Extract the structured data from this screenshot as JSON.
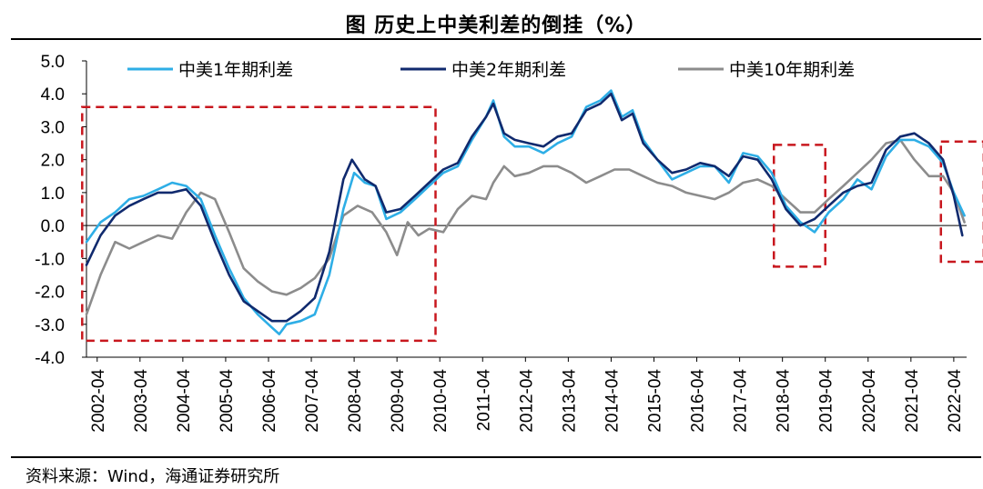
{
  "title": "图  历史上中美利差的倒挂（%）",
  "source": "资料来源：Wind，海通证券研究所",
  "chart_data": {
    "type": "line",
    "title": "图  历史上中美利差的倒挂（%）",
    "ylim": [
      -4.0,
      5.0
    ],
    "y_ticks": [
      "5.0",
      "4.0",
      "3.0",
      "2.0",
      "1.0",
      "0.0",
      "-1.0",
      "-2.0",
      "-3.0",
      "-4.0"
    ],
    "y_tick_values": [
      5,
      4,
      3,
      2,
      1,
      0,
      -1,
      -2,
      -3,
      -4
    ],
    "x_ticks": [
      "2002-04",
      "2003-04",
      "2004-04",
      "2005-04",
      "2006-04",
      "2007-04",
      "2008-04",
      "2009-04",
      "2010-04",
      "2011-04",
      "2012-04",
      "2013-04",
      "2014-04",
      "2015-04",
      "2016-04",
      "2017-04",
      "2018-04",
      "2019-04",
      "2020-04",
      "2021-04",
      "2022-04"
    ],
    "x_range": [
      2002.0,
      2022.55
    ],
    "legend_position": "top",
    "series": [
      {
        "name": "中美1年期利差",
        "color": "#2eaee6",
        "points": [
          [
            2002.0,
            -0.5
          ],
          [
            2002.33,
            0.1
          ],
          [
            2002.67,
            0.4
          ],
          [
            2003.0,
            0.8
          ],
          [
            2003.33,
            0.9
          ],
          [
            2003.67,
            1.1
          ],
          [
            2004.0,
            1.3
          ],
          [
            2004.33,
            1.2
          ],
          [
            2004.67,
            0.8
          ],
          [
            2005.0,
            -0.3
          ],
          [
            2005.33,
            -1.3
          ],
          [
            2005.67,
            -2.2
          ],
          [
            2006.0,
            -2.7
          ],
          [
            2006.33,
            -3.1
          ],
          [
            2006.5,
            -3.3
          ],
          [
            2006.67,
            -3.0
          ],
          [
            2007.0,
            -2.9
          ],
          [
            2007.33,
            -2.7
          ],
          [
            2007.67,
            -1.5
          ],
          [
            2008.0,
            0.5
          ],
          [
            2008.25,
            1.6
          ],
          [
            2008.5,
            1.3
          ],
          [
            2008.75,
            1.2
          ],
          [
            2009.0,
            0.2
          ],
          [
            2009.33,
            0.4
          ],
          [
            2009.67,
            0.8
          ],
          [
            2010.0,
            1.2
          ],
          [
            2010.33,
            1.6
          ],
          [
            2010.67,
            1.8
          ],
          [
            2011.0,
            2.6
          ],
          [
            2011.33,
            3.3
          ],
          [
            2011.5,
            3.8
          ],
          [
            2011.75,
            2.7
          ],
          [
            2012.0,
            2.4
          ],
          [
            2012.33,
            2.4
          ],
          [
            2012.67,
            2.2
          ],
          [
            2013.0,
            2.5
          ],
          [
            2013.33,
            2.7
          ],
          [
            2013.67,
            3.6
          ],
          [
            2014.0,
            3.8
          ],
          [
            2014.25,
            4.1
          ],
          [
            2014.5,
            3.3
          ],
          [
            2014.75,
            3.5
          ],
          [
            2015.0,
            2.6
          ],
          [
            2015.33,
            2.0
          ],
          [
            2015.67,
            1.4
          ],
          [
            2016.0,
            1.6
          ],
          [
            2016.33,
            1.8
          ],
          [
            2016.67,
            1.8
          ],
          [
            2017.0,
            1.3
          ],
          [
            2017.33,
            2.2
          ],
          [
            2017.67,
            2.1
          ],
          [
            2018.0,
            1.6
          ],
          [
            2018.33,
            0.6
          ],
          [
            2018.67,
            0.1
          ],
          [
            2019.0,
            -0.2
          ],
          [
            2019.33,
            0.4
          ],
          [
            2019.67,
            0.8
          ],
          [
            2020.0,
            1.4
          ],
          [
            2020.33,
            1.1
          ],
          [
            2020.67,
            2.1
          ],
          [
            2021.0,
            2.6
          ],
          [
            2021.33,
            2.6
          ],
          [
            2021.67,
            2.4
          ],
          [
            2022.0,
            1.9
          ],
          [
            2022.25,
            1.0
          ],
          [
            2022.5,
            0.3
          ]
        ]
      },
      {
        "name": "中美2年期利差",
        "color": "#102a6e",
        "points": [
          [
            2002.0,
            -1.2
          ],
          [
            2002.33,
            -0.3
          ],
          [
            2002.67,
            0.3
          ],
          [
            2003.0,
            0.6
          ],
          [
            2003.33,
            0.8
          ],
          [
            2003.67,
            1.0
          ],
          [
            2004.0,
            1.0
          ],
          [
            2004.33,
            1.1
          ],
          [
            2004.67,
            0.6
          ],
          [
            2005.0,
            -0.5
          ],
          [
            2005.33,
            -1.5
          ],
          [
            2005.67,
            -2.3
          ],
          [
            2006.0,
            -2.6
          ],
          [
            2006.33,
            -2.9
          ],
          [
            2006.67,
            -2.9
          ],
          [
            2007.0,
            -2.6
          ],
          [
            2007.33,
            -2.2
          ],
          [
            2007.67,
            -0.8
          ],
          [
            2008.0,
            1.4
          ],
          [
            2008.2,
            2.0
          ],
          [
            2008.5,
            1.4
          ],
          [
            2008.75,
            1.2
          ],
          [
            2009.0,
            0.4
          ],
          [
            2009.33,
            0.5
          ],
          [
            2009.67,
            0.9
          ],
          [
            2010.0,
            1.3
          ],
          [
            2010.33,
            1.7
          ],
          [
            2010.67,
            1.9
          ],
          [
            2011.0,
            2.7
          ],
          [
            2011.33,
            3.3
          ],
          [
            2011.5,
            3.7
          ],
          [
            2011.75,
            2.8
          ],
          [
            2012.0,
            2.6
          ],
          [
            2012.33,
            2.5
          ],
          [
            2012.67,
            2.4
          ],
          [
            2013.0,
            2.7
          ],
          [
            2013.33,
            2.8
          ],
          [
            2013.67,
            3.5
          ],
          [
            2014.0,
            3.7
          ],
          [
            2014.25,
            4.0
          ],
          [
            2014.5,
            3.2
          ],
          [
            2014.75,
            3.4
          ],
          [
            2015.0,
            2.5
          ],
          [
            2015.33,
            2.0
          ],
          [
            2015.67,
            1.6
          ],
          [
            2016.0,
            1.7
          ],
          [
            2016.33,
            1.9
          ],
          [
            2016.67,
            1.8
          ],
          [
            2017.0,
            1.5
          ],
          [
            2017.33,
            2.1
          ],
          [
            2017.67,
            2.0
          ],
          [
            2018.0,
            1.4
          ],
          [
            2018.33,
            0.5
          ],
          [
            2018.67,
            0.0
          ],
          [
            2019.0,
            0.2
          ],
          [
            2019.33,
            0.6
          ],
          [
            2019.67,
            1.0
          ],
          [
            2020.0,
            1.2
          ],
          [
            2020.33,
            1.3
          ],
          [
            2020.67,
            2.3
          ],
          [
            2021.0,
            2.7
          ],
          [
            2021.33,
            2.8
          ],
          [
            2021.67,
            2.5
          ],
          [
            2022.0,
            2.0
          ],
          [
            2022.25,
            0.9
          ],
          [
            2022.45,
            -0.3
          ]
        ]
      },
      {
        "name": "中美10年期利差",
        "color": "#8c8c8c",
        "points": [
          [
            2002.0,
            -2.7
          ],
          [
            2002.33,
            -1.5
          ],
          [
            2002.67,
            -0.5
          ],
          [
            2003.0,
            -0.7
          ],
          [
            2003.33,
            -0.5
          ],
          [
            2003.67,
            -0.3
          ],
          [
            2004.0,
            -0.4
          ],
          [
            2004.33,
            0.4
          ],
          [
            2004.67,
            1.0
          ],
          [
            2005.0,
            0.8
          ],
          [
            2005.33,
            -0.2
          ],
          [
            2005.67,
            -1.3
          ],
          [
            2006.0,
            -1.7
          ],
          [
            2006.33,
            -2.0
          ],
          [
            2006.67,
            -2.1
          ],
          [
            2007.0,
            -1.9
          ],
          [
            2007.33,
            -1.6
          ],
          [
            2007.67,
            -1.0
          ],
          [
            2008.0,
            0.3
          ],
          [
            2008.33,
            0.6
          ],
          [
            2008.67,
            0.4
          ],
          [
            2009.0,
            -0.2
          ],
          [
            2009.25,
            -0.9
          ],
          [
            2009.5,
            0.1
          ],
          [
            2009.75,
            -0.3
          ],
          [
            2010.0,
            -0.1
          ],
          [
            2010.33,
            -0.2
          ],
          [
            2010.67,
            0.5
          ],
          [
            2011.0,
            0.9
          ],
          [
            2011.33,
            0.8
          ],
          [
            2011.5,
            1.3
          ],
          [
            2011.75,
            1.8
          ],
          [
            2012.0,
            1.5
          ],
          [
            2012.33,
            1.6
          ],
          [
            2012.67,
            1.8
          ],
          [
            2013.0,
            1.8
          ],
          [
            2013.33,
            1.6
          ],
          [
            2013.67,
            1.3
          ],
          [
            2014.0,
            1.5
          ],
          [
            2014.33,
            1.7
          ],
          [
            2014.67,
            1.7
          ],
          [
            2015.0,
            1.5
          ],
          [
            2015.33,
            1.3
          ],
          [
            2015.67,
            1.2
          ],
          [
            2016.0,
            1.0
          ],
          [
            2016.33,
            0.9
          ],
          [
            2016.67,
            0.8
          ],
          [
            2017.0,
            1.0
          ],
          [
            2017.33,
            1.3
          ],
          [
            2017.67,
            1.4
          ],
          [
            2018.0,
            1.2
          ],
          [
            2018.33,
            0.8
          ],
          [
            2018.67,
            0.4
          ],
          [
            2019.0,
            0.4
          ],
          [
            2019.33,
            0.8
          ],
          [
            2019.67,
            1.2
          ],
          [
            2020.0,
            1.6
          ],
          [
            2020.33,
            2.0
          ],
          [
            2020.67,
            2.5
          ],
          [
            2021.0,
            2.6
          ],
          [
            2021.33,
            2.0
          ],
          [
            2021.67,
            1.5
          ],
          [
            2022.0,
            1.5
          ],
          [
            2022.25,
            1.0
          ],
          [
            2022.5,
            0.1
          ]
        ]
      }
    ],
    "annotations": [
      {
        "type": "dashed-box",
        "x0": 2001.9,
        "x1": 2010.15,
        "y0": -3.5,
        "y1": 3.6,
        "color": "#c8171e"
      },
      {
        "type": "dashed-box",
        "x0": 2018.05,
        "x1": 2019.25,
        "y0": -1.25,
        "y1": 2.45,
        "color": "#c8171e"
      },
      {
        "type": "dashed-box",
        "x0": 2021.95,
        "x1": 2022.95,
        "y0": -1.1,
        "y1": 2.55,
        "color": "#c8171e"
      }
    ]
  }
}
